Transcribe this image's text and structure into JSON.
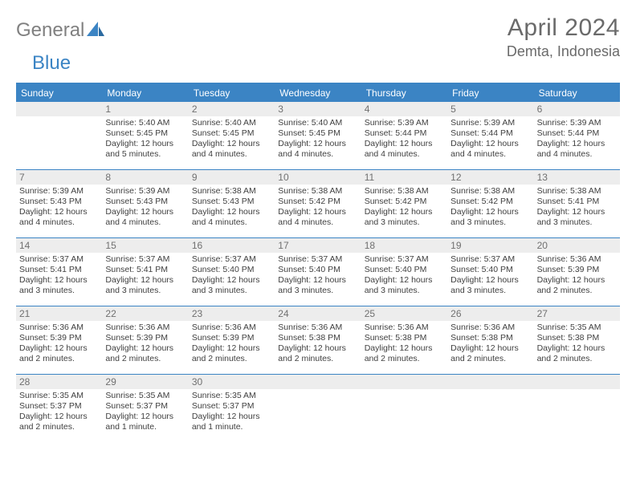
{
  "brand": {
    "text1": "General",
    "text2": "Blue",
    "color1": "#808080",
    "color2": "#3b84c4"
  },
  "header": {
    "monthYear": "April 2024",
    "location": "Demta, Indonesia"
  },
  "colors": {
    "accent": "#3b84c4",
    "dayStrip": "#ededed",
    "text": "#3f3f3f",
    "muted": "#6a6a6a"
  },
  "weekdays": [
    "Sunday",
    "Monday",
    "Tuesday",
    "Wednesday",
    "Thursday",
    "Friday",
    "Saturday"
  ],
  "weeks": [
    [
      {
        "n": "",
        "sr": "",
        "ss": "",
        "dl": ""
      },
      {
        "n": "1",
        "sr": "Sunrise: 5:40 AM",
        "ss": "Sunset: 5:45 PM",
        "dl": "Daylight: 12 hours and 5 minutes."
      },
      {
        "n": "2",
        "sr": "Sunrise: 5:40 AM",
        "ss": "Sunset: 5:45 PM",
        "dl": "Daylight: 12 hours and 4 minutes."
      },
      {
        "n": "3",
        "sr": "Sunrise: 5:40 AM",
        "ss": "Sunset: 5:45 PM",
        "dl": "Daylight: 12 hours and 4 minutes."
      },
      {
        "n": "4",
        "sr": "Sunrise: 5:39 AM",
        "ss": "Sunset: 5:44 PM",
        "dl": "Daylight: 12 hours and 4 minutes."
      },
      {
        "n": "5",
        "sr": "Sunrise: 5:39 AM",
        "ss": "Sunset: 5:44 PM",
        "dl": "Daylight: 12 hours and 4 minutes."
      },
      {
        "n": "6",
        "sr": "Sunrise: 5:39 AM",
        "ss": "Sunset: 5:44 PM",
        "dl": "Daylight: 12 hours and 4 minutes."
      }
    ],
    [
      {
        "n": "7",
        "sr": "Sunrise: 5:39 AM",
        "ss": "Sunset: 5:43 PM",
        "dl": "Daylight: 12 hours and 4 minutes."
      },
      {
        "n": "8",
        "sr": "Sunrise: 5:39 AM",
        "ss": "Sunset: 5:43 PM",
        "dl": "Daylight: 12 hours and 4 minutes."
      },
      {
        "n": "9",
        "sr": "Sunrise: 5:38 AM",
        "ss": "Sunset: 5:43 PM",
        "dl": "Daylight: 12 hours and 4 minutes."
      },
      {
        "n": "10",
        "sr": "Sunrise: 5:38 AM",
        "ss": "Sunset: 5:42 PM",
        "dl": "Daylight: 12 hours and 4 minutes."
      },
      {
        "n": "11",
        "sr": "Sunrise: 5:38 AM",
        "ss": "Sunset: 5:42 PM",
        "dl": "Daylight: 12 hours and 3 minutes."
      },
      {
        "n": "12",
        "sr": "Sunrise: 5:38 AM",
        "ss": "Sunset: 5:42 PM",
        "dl": "Daylight: 12 hours and 3 minutes."
      },
      {
        "n": "13",
        "sr": "Sunrise: 5:38 AM",
        "ss": "Sunset: 5:41 PM",
        "dl": "Daylight: 12 hours and 3 minutes."
      }
    ],
    [
      {
        "n": "14",
        "sr": "Sunrise: 5:37 AM",
        "ss": "Sunset: 5:41 PM",
        "dl": "Daylight: 12 hours and 3 minutes."
      },
      {
        "n": "15",
        "sr": "Sunrise: 5:37 AM",
        "ss": "Sunset: 5:41 PM",
        "dl": "Daylight: 12 hours and 3 minutes."
      },
      {
        "n": "16",
        "sr": "Sunrise: 5:37 AM",
        "ss": "Sunset: 5:40 PM",
        "dl": "Daylight: 12 hours and 3 minutes."
      },
      {
        "n": "17",
        "sr": "Sunrise: 5:37 AM",
        "ss": "Sunset: 5:40 PM",
        "dl": "Daylight: 12 hours and 3 minutes."
      },
      {
        "n": "18",
        "sr": "Sunrise: 5:37 AM",
        "ss": "Sunset: 5:40 PM",
        "dl": "Daylight: 12 hours and 3 minutes."
      },
      {
        "n": "19",
        "sr": "Sunrise: 5:37 AM",
        "ss": "Sunset: 5:40 PM",
        "dl": "Daylight: 12 hours and 3 minutes."
      },
      {
        "n": "20",
        "sr": "Sunrise: 5:36 AM",
        "ss": "Sunset: 5:39 PM",
        "dl": "Daylight: 12 hours and 2 minutes."
      }
    ],
    [
      {
        "n": "21",
        "sr": "Sunrise: 5:36 AM",
        "ss": "Sunset: 5:39 PM",
        "dl": "Daylight: 12 hours and 2 minutes."
      },
      {
        "n": "22",
        "sr": "Sunrise: 5:36 AM",
        "ss": "Sunset: 5:39 PM",
        "dl": "Daylight: 12 hours and 2 minutes."
      },
      {
        "n": "23",
        "sr": "Sunrise: 5:36 AM",
        "ss": "Sunset: 5:39 PM",
        "dl": "Daylight: 12 hours and 2 minutes."
      },
      {
        "n": "24",
        "sr": "Sunrise: 5:36 AM",
        "ss": "Sunset: 5:38 PM",
        "dl": "Daylight: 12 hours and 2 minutes."
      },
      {
        "n": "25",
        "sr": "Sunrise: 5:36 AM",
        "ss": "Sunset: 5:38 PM",
        "dl": "Daylight: 12 hours and 2 minutes."
      },
      {
        "n": "26",
        "sr": "Sunrise: 5:36 AM",
        "ss": "Sunset: 5:38 PM",
        "dl": "Daylight: 12 hours and 2 minutes."
      },
      {
        "n": "27",
        "sr": "Sunrise: 5:35 AM",
        "ss": "Sunset: 5:38 PM",
        "dl": "Daylight: 12 hours and 2 minutes."
      }
    ],
    [
      {
        "n": "28",
        "sr": "Sunrise: 5:35 AM",
        "ss": "Sunset: 5:37 PM",
        "dl": "Daylight: 12 hours and 2 minutes."
      },
      {
        "n": "29",
        "sr": "Sunrise: 5:35 AM",
        "ss": "Sunset: 5:37 PM",
        "dl": "Daylight: 12 hours and 1 minute."
      },
      {
        "n": "30",
        "sr": "Sunrise: 5:35 AM",
        "ss": "Sunset: 5:37 PM",
        "dl": "Daylight: 12 hours and 1 minute."
      },
      {
        "n": "",
        "sr": "",
        "ss": "",
        "dl": ""
      },
      {
        "n": "",
        "sr": "",
        "ss": "",
        "dl": ""
      },
      {
        "n": "",
        "sr": "",
        "ss": "",
        "dl": ""
      },
      {
        "n": "",
        "sr": "",
        "ss": "",
        "dl": ""
      }
    ]
  ]
}
